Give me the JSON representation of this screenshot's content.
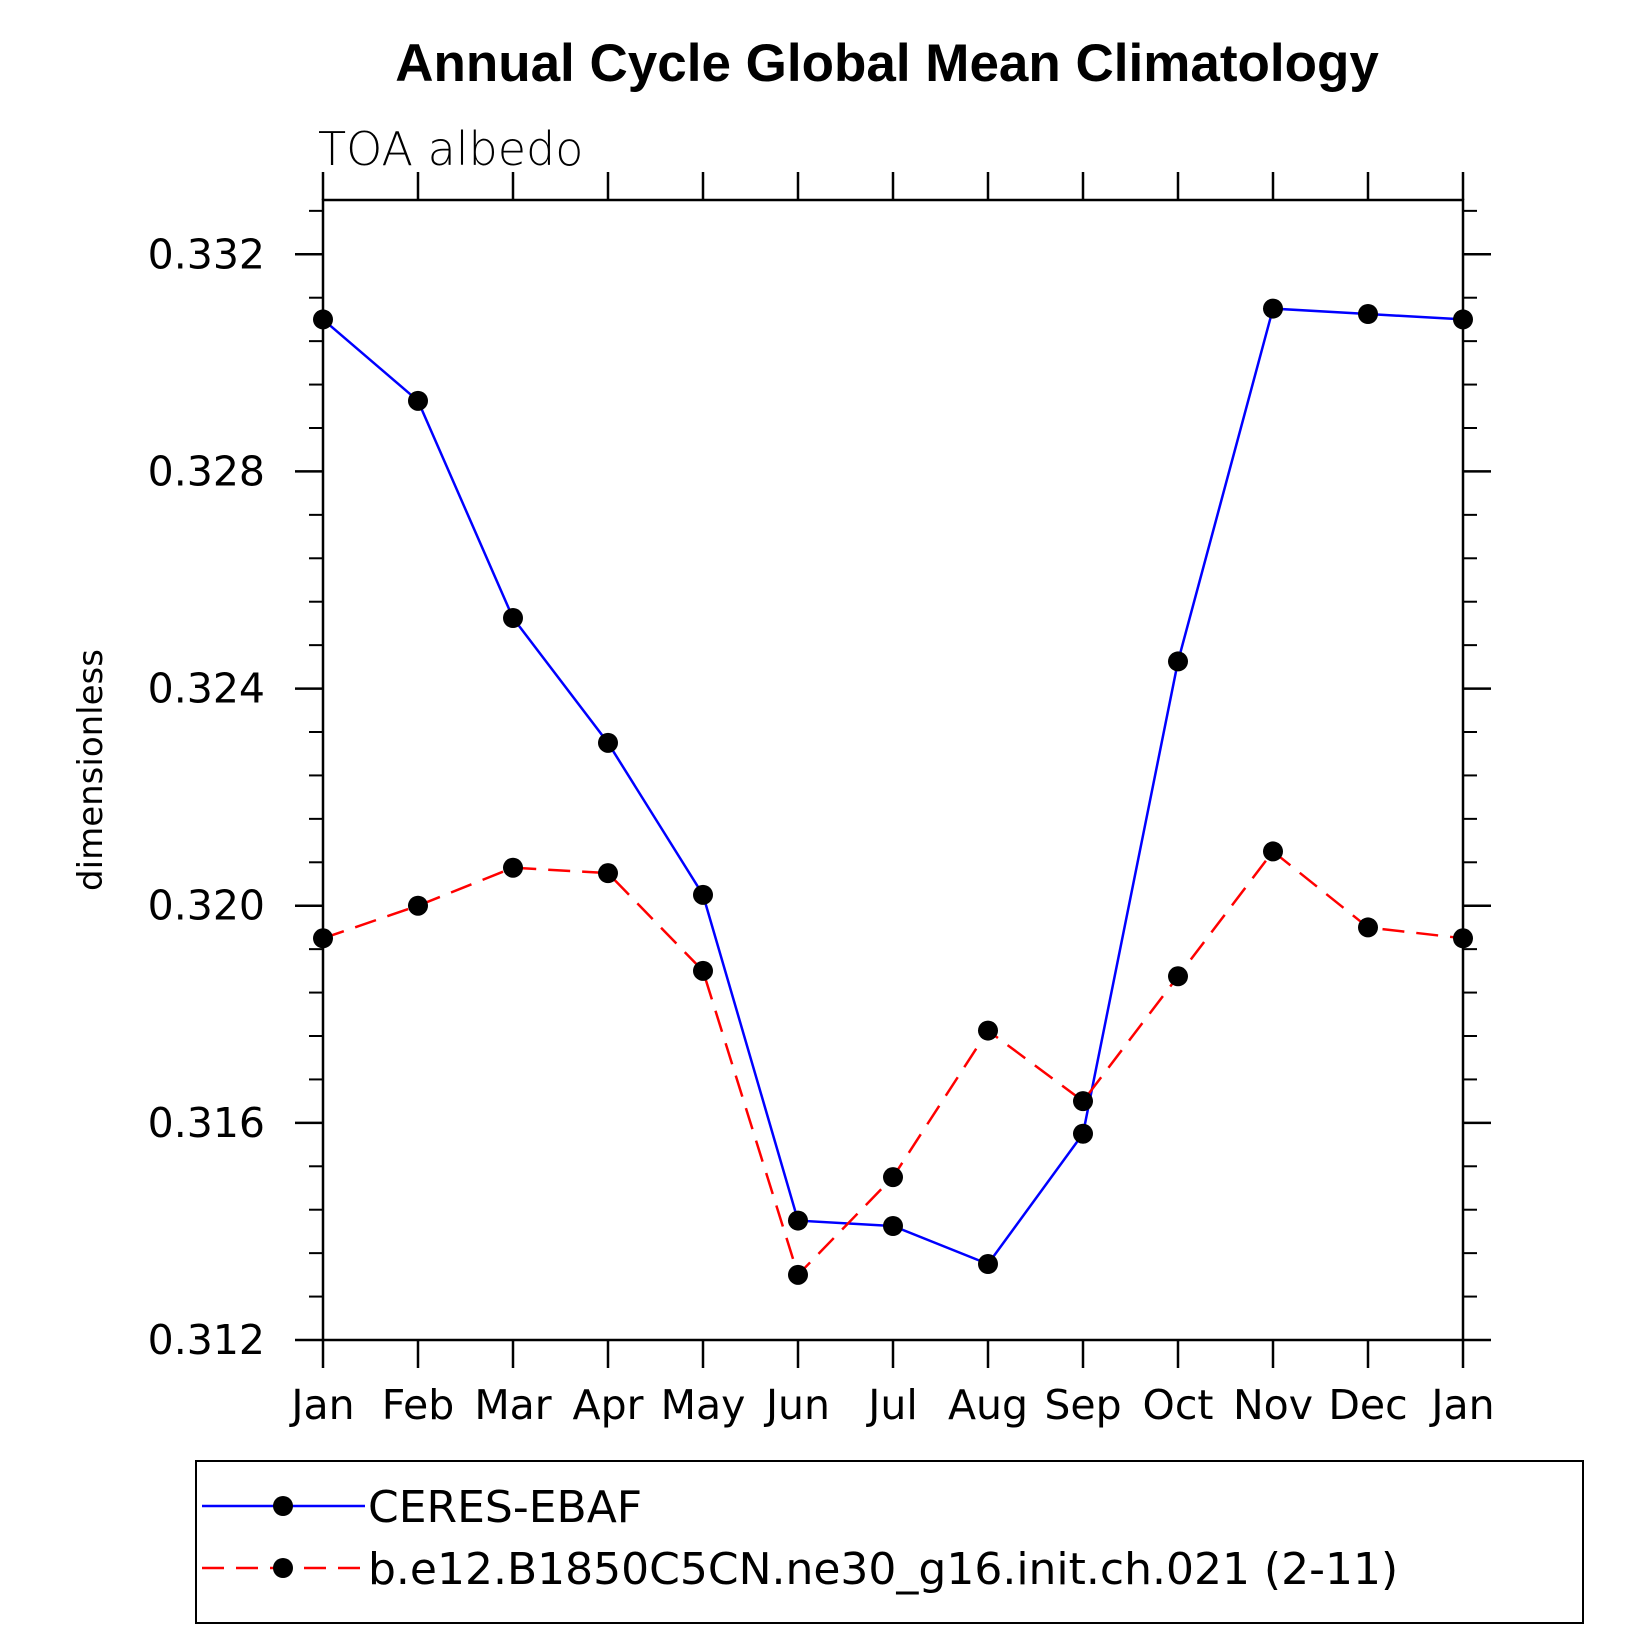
{
  "chart_data": {
    "type": "line",
    "title": "Annual Cycle Global Mean Climatology",
    "subtitle": "TOA albedo",
    "xlabel": "",
    "ylabel": "dimensionless",
    "categories": [
      "Jan",
      "Feb",
      "Mar",
      "Apr",
      "May",
      "Jun",
      "Jul",
      "Aug",
      "Sep",
      "Oct",
      "Nov",
      "Dec",
      "Jan"
    ],
    "ylim": [
      0.312,
      0.333
    ],
    "yticks": [
      0.312,
      0.316,
      0.32,
      0.324,
      0.328,
      0.332
    ],
    "ytick_labels": [
      "0.312",
      "0.316",
      "0.320",
      "0.324",
      "0.328",
      "0.332"
    ],
    "grid": false,
    "legend_position": "bottom",
    "series": [
      {
        "name": "CERES-EBAF",
        "color": "#0000ff",
        "line_style": "solid",
        "marker": "filled-circle",
        "values": [
          0.3308,
          0.3293,
          0.3253,
          0.323,
          0.3202,
          0.3142,
          0.3141,
          0.3134,
          0.3158,
          0.3245,
          0.331,
          0.3309,
          0.3308
        ]
      },
      {
        "name": "b.e12.B1850C5CN.ne30_g16.init.ch.021 (2-11)",
        "color": "#ff0000",
        "line_style": "dashed",
        "marker": "filled-circle",
        "values": [
          0.3194,
          0.32,
          0.3207,
          0.3206,
          0.3188,
          0.3132,
          0.315,
          0.3177,
          0.3164,
          0.3187,
          0.321,
          0.3196,
          0.3194
        ]
      }
    ]
  }
}
